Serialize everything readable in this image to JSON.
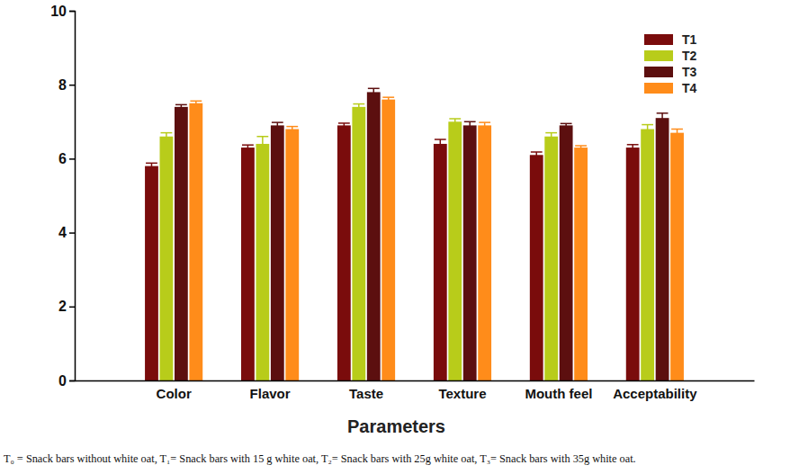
{
  "chart_data": {
    "type": "bar",
    "x_label": "Parameters",
    "categories": [
      "Color",
      "Flavor",
      "Taste",
      "Texture",
      "Mouth feel",
      "Acceptability"
    ],
    "series": [
      {
        "name": "T1",
        "color": "#7a0c0c",
        "values": [
          5.8,
          6.3,
          6.9,
          6.4,
          6.1,
          6.3
        ],
        "errors": [
          0.08,
          0.07,
          0.06,
          0.12,
          0.08,
          0.08
        ]
      },
      {
        "name": "T2",
        "color": "#b8cc1a",
        "values": [
          6.6,
          6.4,
          7.4,
          7.0,
          6.6,
          6.8
        ],
        "errors": [
          0.1,
          0.2,
          0.08,
          0.08,
          0.1,
          0.12
        ]
      },
      {
        "name": "T3",
        "color": "#5c0f0f",
        "values": [
          7.4,
          6.9,
          7.8,
          6.9,
          6.9,
          7.1
        ],
        "errors": [
          0.06,
          0.08,
          0.1,
          0.1,
          0.05,
          0.13
        ]
      },
      {
        "name": "T4",
        "color": "#ff8c1a",
        "values": [
          7.5,
          6.8,
          7.6,
          6.9,
          6.3,
          6.7
        ],
        "errors": [
          0.06,
          0.07,
          0.06,
          0.08,
          0.05,
          0.1
        ]
      }
    ],
    "ylim": [
      0,
      10
    ],
    "yticks": [
      0,
      2,
      4,
      6,
      8,
      10
    ],
    "grid": false,
    "legend": "top-right",
    "annotations": [
      "T₀ = Snack bars without white oat, T₁= Snack bars with 15 g white oat, T₂= Snack bars with 25g white oat, T₃= Snack bars with 35g white oat."
    ]
  }
}
